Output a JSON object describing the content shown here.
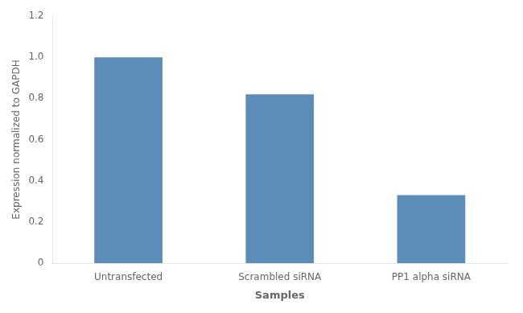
{
  "chart_data": {
    "type": "bar",
    "categories": [
      "Untransfected",
      "Scrambled siRNA",
      "PP1 alpha siRNA"
    ],
    "values": [
      1.0,
      0.82,
      0.33
    ],
    "color": "#5b8db8",
    "xlabel": "Samples",
    "ylabel": "Expression normalized to GAPDH",
    "ylim": [
      0,
      1.2
    ],
    "yticks": [
      0,
      0.2,
      0.4,
      0.6,
      0.8,
      {
        "value": 1.0,
        "label": "1.0"
      },
      1.2
    ],
    "grid": false
  }
}
